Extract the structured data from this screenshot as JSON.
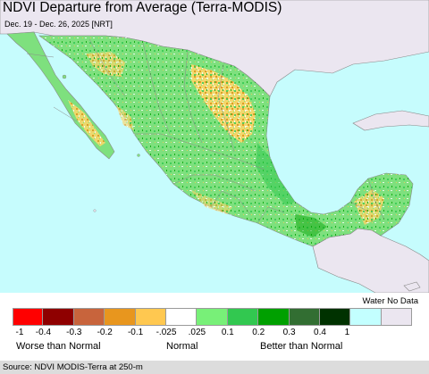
{
  "title": "NDVI Departure from Average (Terra-MODIS)",
  "subtitle": "Dec. 19 - Dec. 26, 2025 [NRT]",
  "legend": {
    "special_label": "Water No Data",
    "colors": [
      "#ff0000",
      "#8f0000",
      "#c8643c",
      "#e8961e",
      "#ffc850",
      "#ffffff",
      "#78f078",
      "#32c850",
      "#00a000",
      "#326e32",
      "#003200",
      "#c3ffff",
      "#ebe6f0"
    ],
    "ticks": [
      "-1",
      "-0.4",
      "-0.3",
      "-0.2",
      "-0.1",
      "-.025",
      ".025",
      "0.1",
      "0.2",
      "0.3",
      "0.4",
      "1"
    ],
    "categories": {
      "worse": "Worse than Normal",
      "normal": "Normal",
      "better": "Better than Normal"
    }
  },
  "source": "Source: NDVI MODIS-Terra at 250-m",
  "map_colors": {
    "water": "#c6fcfd",
    "neighbor_land": "#ebe6f0",
    "mexico_base": "#7ee07e",
    "strong_green": "#32c850",
    "dark_green": "#00a000",
    "below_normal": "#ffc850",
    "orange": "#e8961e",
    "normal": "#ffffff",
    "borders": "#888888"
  }
}
